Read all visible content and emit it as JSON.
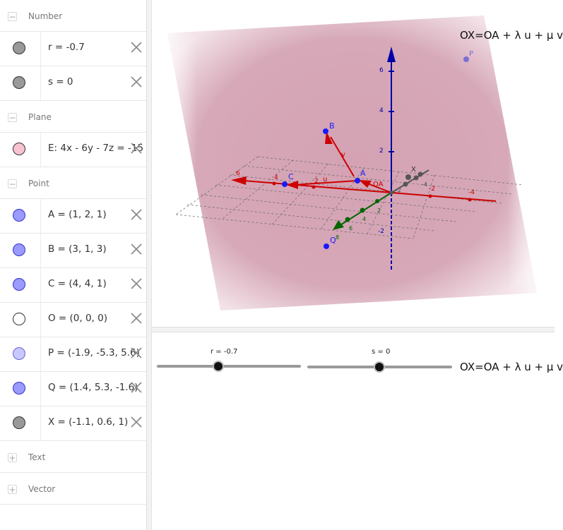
{
  "algebra": {
    "categories": {
      "number": "Number",
      "plane": "Plane",
      "point": "Point",
      "text": "Text",
      "vector": "Vector"
    },
    "numbers": [
      {
        "label": "r = -0.7",
        "color": "#999999"
      },
      {
        "label": "s = 0",
        "color": "#999999"
      }
    ],
    "planes": [
      {
        "label": "E: 4x - 6y - 7z = -15",
        "color": "#f7c3d0"
      }
    ],
    "points": [
      {
        "label": "A = (1, 2, 1)",
        "color": "#9a9aff"
      },
      {
        "label": "B = (3, 1, 3)",
        "color": "#9a9aff"
      },
      {
        "label": "C = (4, 4, 1)",
        "color": "#9a9aff"
      },
      {
        "label": "O = (0, 0, 0)",
        "color": "#ffffff"
      },
      {
        "label": "P = (-1.9, -5.3, 5.6)",
        "color": "#c8c8ff"
      },
      {
        "label": "Q = (1.4, 5.3, -1.6)",
        "color": "#9a9aff"
      },
      {
        "label": "X = (-1.1, 0.6, 1)",
        "color": "#999999"
      }
    ]
  },
  "graphics3d": {
    "formula": "OX=OA + λ u + μ v",
    "point_labels": {
      "A": "A",
      "B": "B",
      "C": "C",
      "O": "O",
      "P": "P",
      "Q": "Q",
      "X": "X",
      "OA": "OA",
      "u": "u",
      "v": "v"
    },
    "x_ticks": [
      "6",
      "4",
      "2",
      "-2",
      "-4"
    ],
    "y_ticks": [
      "2",
      "4",
      "6"
    ],
    "z_ticks": [
      "6",
      "4",
      "2",
      "-2"
    ],
    "small_ticks": [
      "-2",
      "-4",
      "8"
    ],
    "colors": {
      "x_axis": "#cc0000",
      "y_axis": "#006600",
      "z_axis": "#0000aa",
      "plane": "#c98a9e",
      "points": "#1a1aff"
    }
  },
  "graphics2d": {
    "slider_r_label": "r = -0.7",
    "slider_s_label": "s = 0",
    "formula": "OX=OA + λ u + μ v",
    "slider_r_value": -0.7,
    "slider_s_value": 0
  }
}
